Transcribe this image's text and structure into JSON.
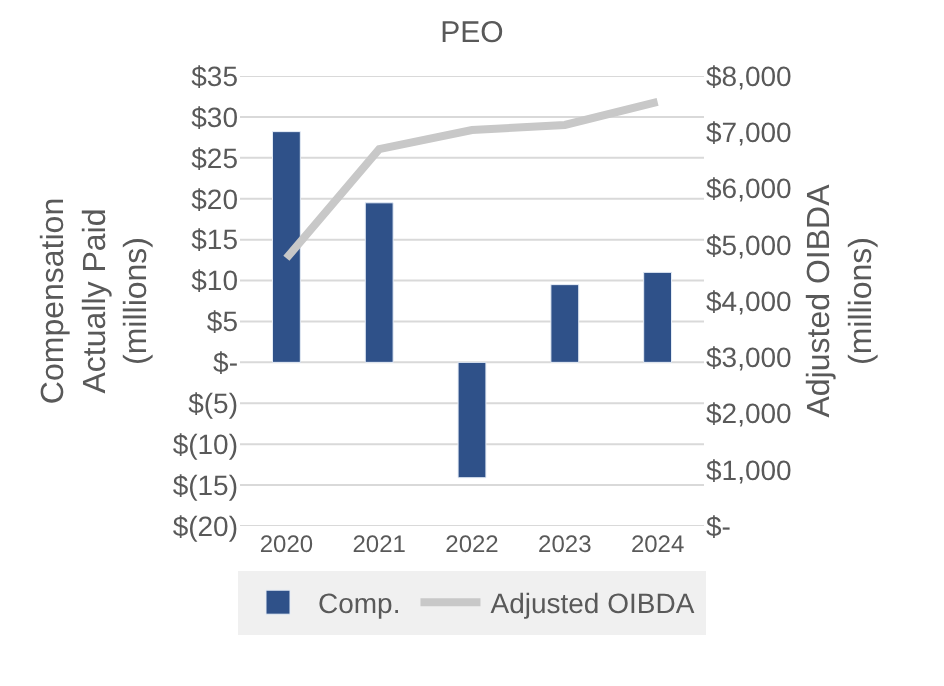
{
  "chart_data": {
    "type": "bar",
    "title": "PEO",
    "categories": [
      "2020",
      "2021",
      "2022",
      "2023",
      "2024"
    ],
    "series": [
      {
        "name": "Comp.",
        "color": "#2f5189",
        "values": [
          28.2,
          19.5,
          -14.1,
          9.5,
          11.0
        ]
      },
      {
        "name": "Adjusted OIBDA",
        "type": "line",
        "axis": "y2",
        "color": "#c8c8c8",
        "values": [
          4760,
          6700,
          7040,
          7130,
          7540
        ]
      }
    ],
    "ylabel": "Compensation\nActually Paid\n(millions)",
    "y2label": "Adjusted OIBDA\n(millions)",
    "ylim": [
      -20,
      35
    ],
    "yticks": [
      {
        "value": 35,
        "label": "$35"
      },
      {
        "value": 30,
        "label": "$30"
      },
      {
        "value": 25,
        "label": "$25"
      },
      {
        "value": 20,
        "label": "$20"
      },
      {
        "value": 15,
        "label": "$15"
      },
      {
        "value": 10,
        "label": "$10"
      },
      {
        "value": 5,
        "label": "$5"
      },
      {
        "value": 0,
        "label": "$-"
      },
      {
        "value": -5,
        "label": "$(5)"
      },
      {
        "value": -10,
        "label": "$(10)"
      },
      {
        "value": -15,
        "label": "$(15)"
      },
      {
        "value": -20,
        "label": "$(20)"
      }
    ],
    "y2lim": [
      0,
      8000
    ],
    "y2ticks": [
      {
        "value": 8000,
        "label": "$8,000"
      },
      {
        "value": 7000,
        "label": "$7,000"
      },
      {
        "value": 6000,
        "label": "$6,000"
      },
      {
        "value": 5000,
        "label": "$5,000"
      },
      {
        "value": 4000,
        "label": "$4,000"
      },
      {
        "value": 3000,
        "label": "$3,000"
      },
      {
        "value": 2000,
        "label": "$2,000"
      },
      {
        "value": 1000,
        "label": "$1,000"
      },
      {
        "value": 0,
        "label": "$-"
      }
    ],
    "grid": "y",
    "legend": "bottom",
    "marker": "none"
  }
}
